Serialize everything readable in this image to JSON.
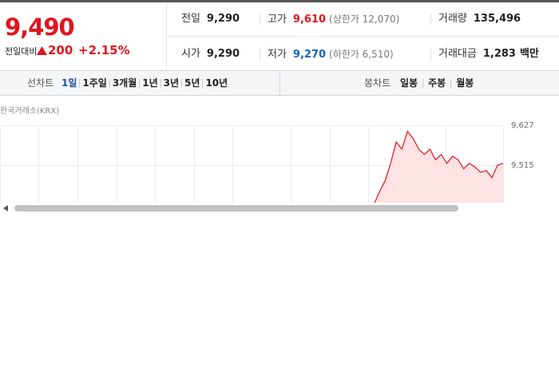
{
  "quote": {
    "price": "9,490",
    "change_label": "전일대비",
    "change": "200",
    "change_rate": "+2.15%"
  },
  "stats": [
    [
      {
        "label": "전일",
        "value": "9,290"
      },
      {
        "label": "고가",
        "value": "9,610",
        "note": "(상한가 12,070)"
      },
      {
        "label": "거래량",
        "value": "135,496"
      }
    ],
    [
      {
        "label": "시가",
        "value": "9,290"
      },
      {
        "label": "저가",
        "value": "9,270",
        "note": "(하한가 6,510)"
      },
      {
        "label": "거래대금",
        "value": "1,283",
        "unit": "백만"
      }
    ]
  ],
  "tabs": {
    "line_label": "선차트",
    "line_periods": [
      "1일",
      "1주일",
      "3개월",
      "1년",
      "3년",
      "5년",
      "10년"
    ],
    "selected": 0,
    "candle_label": "봉차트",
    "candle_periods": [
      "일봉",
      "주봉",
      "월봉"
    ]
  },
  "chart_data": {
    "type": "line",
    "source": "한국거래소(KRX)",
    "values": [
      9403,
      9440,
      9470,
      9520,
      9580,
      9560,
      9610,
      9590,
      9560,
      9545,
      9560,
      9530,
      9545,
      9520,
      9540,
      9530,
      9505,
      9520,
      9510,
      9495,
      9500,
      9480,
      9515,
      9520
    ],
    "color": "#e4141d",
    "ylim": [
      9403,
      9627
    ],
    "yticks": [
      {
        "value": 9627,
        "label": "9,627"
      },
      {
        "value": 9515,
        "label": "9,515"
      }
    ],
    "grid": true
  }
}
